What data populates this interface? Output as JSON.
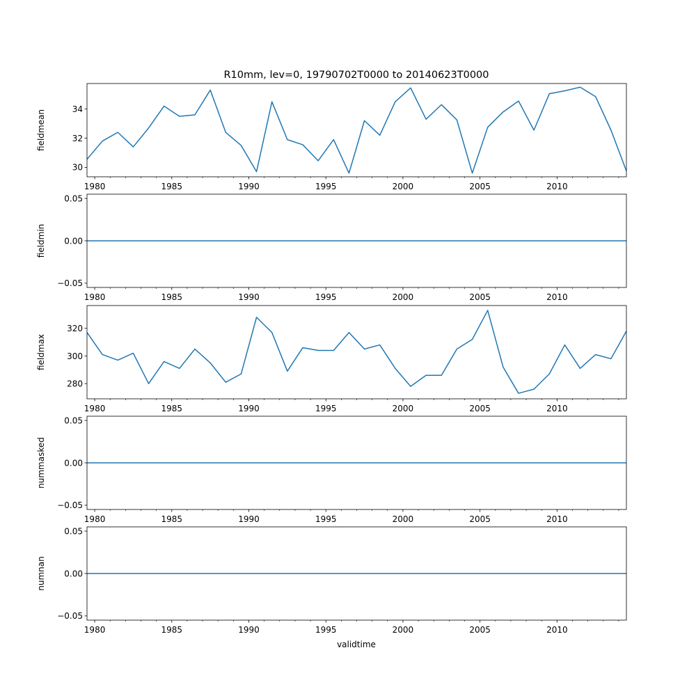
{
  "chart_data": {
    "type": "line",
    "title": "R10mm, lev=0, 19790702T0000 to 20140623T0000",
    "xlabel": "validtime",
    "xlim": [
      1979.5,
      2014.5
    ],
    "xticks": [
      1980,
      1985,
      1990,
      1995,
      2000,
      2005,
      2010
    ],
    "x": [
      1979.5,
      1980.5,
      1981.5,
      1982.5,
      1983.5,
      1984.5,
      1985.5,
      1986.5,
      1987.5,
      1988.5,
      1989.5,
      1990.5,
      1991.5,
      1992.5,
      1993.5,
      1994.5,
      1995.5,
      1996.5,
      1997.5,
      1998.5,
      1999.5,
      2000.5,
      2001.5,
      2002.5,
      2003.5,
      2004.5,
      2005.5,
      2006.5,
      2007.5,
      2008.5,
      2009.5,
      2010.5,
      2011.5,
      2012.5,
      2013.5,
      2014.5
    ],
    "color": "#1f77b4",
    "grid": false,
    "panels": [
      {
        "ylabel": "fieldmean",
        "ylim": [
          29.35,
          35.75
        ],
        "yticks": [
          30,
          32,
          34
        ],
        "ytick_labels": [
          "30",
          "32",
          "34"
        ],
        "values": [
          30.55,
          31.8,
          32.4,
          31.4,
          32.7,
          34.2,
          33.5,
          33.6,
          35.3,
          32.4,
          31.5,
          29.7,
          34.5,
          31.9,
          31.55,
          30.45,
          31.9,
          29.6,
          33.2,
          32.2,
          34.5,
          35.45,
          33.3,
          34.3,
          33.25,
          29.6,
          32.75,
          33.8,
          34.55,
          32.55,
          35.05,
          35.25,
          35.5,
          34.85,
          32.55,
          29.75
        ]
      },
      {
        "ylabel": "fieldmin",
        "ylim": [
          -0.055,
          0.055
        ],
        "yticks": [
          -0.05,
          0,
          0.05
        ],
        "ytick_labels": [
          "−0.05",
          "0.00",
          "0.05"
        ],
        "values": [
          0,
          0,
          0,
          0,
          0,
          0,
          0,
          0,
          0,
          0,
          0,
          0,
          0,
          0,
          0,
          0,
          0,
          0,
          0,
          0,
          0,
          0,
          0,
          0,
          0,
          0,
          0,
          0,
          0,
          0,
          0,
          0,
          0,
          0,
          0,
          0
        ]
      },
      {
        "ylabel": "fieldmax",
        "ylim": [
          269,
          336.5
        ],
        "yticks": [
          280,
          300,
          320
        ],
        "ytick_labels": [
          "280",
          "300",
          "320"
        ],
        "values": [
          317,
          301,
          297,
          302,
          280,
          296,
          291,
          305,
          295,
          281,
          287,
          328,
          317,
          289,
          306,
          304,
          304,
          317,
          305,
          308,
          291,
          278,
          286,
          286,
          305,
          312,
          333,
          292,
          273,
          276,
          287,
          308,
          291,
          301,
          298,
          318
        ]
      },
      {
        "ylabel": "nummasked",
        "ylim": [
          -0.055,
          0.055
        ],
        "yticks": [
          -0.05,
          0,
          0.05
        ],
        "ytick_labels": [
          "−0.05",
          "0.00",
          "0.05"
        ],
        "values": [
          0,
          0,
          0,
          0,
          0,
          0,
          0,
          0,
          0,
          0,
          0,
          0,
          0,
          0,
          0,
          0,
          0,
          0,
          0,
          0,
          0,
          0,
          0,
          0,
          0,
          0,
          0,
          0,
          0,
          0,
          0,
          0,
          0,
          0,
          0,
          0
        ]
      },
      {
        "ylabel": "numnan",
        "ylim": [
          -0.055,
          0.055
        ],
        "yticks": [
          -0.05,
          0,
          0.05
        ],
        "ytick_labels": [
          "−0.05",
          "0.00",
          "0.05"
        ],
        "values": [
          0,
          0,
          0,
          0,
          0,
          0,
          0,
          0,
          0,
          0,
          0,
          0,
          0,
          0,
          0,
          0,
          0,
          0,
          0,
          0,
          0,
          0,
          0,
          0,
          0,
          0,
          0,
          0,
          0,
          0,
          0,
          0,
          0,
          0,
          0,
          0
        ]
      }
    ]
  }
}
